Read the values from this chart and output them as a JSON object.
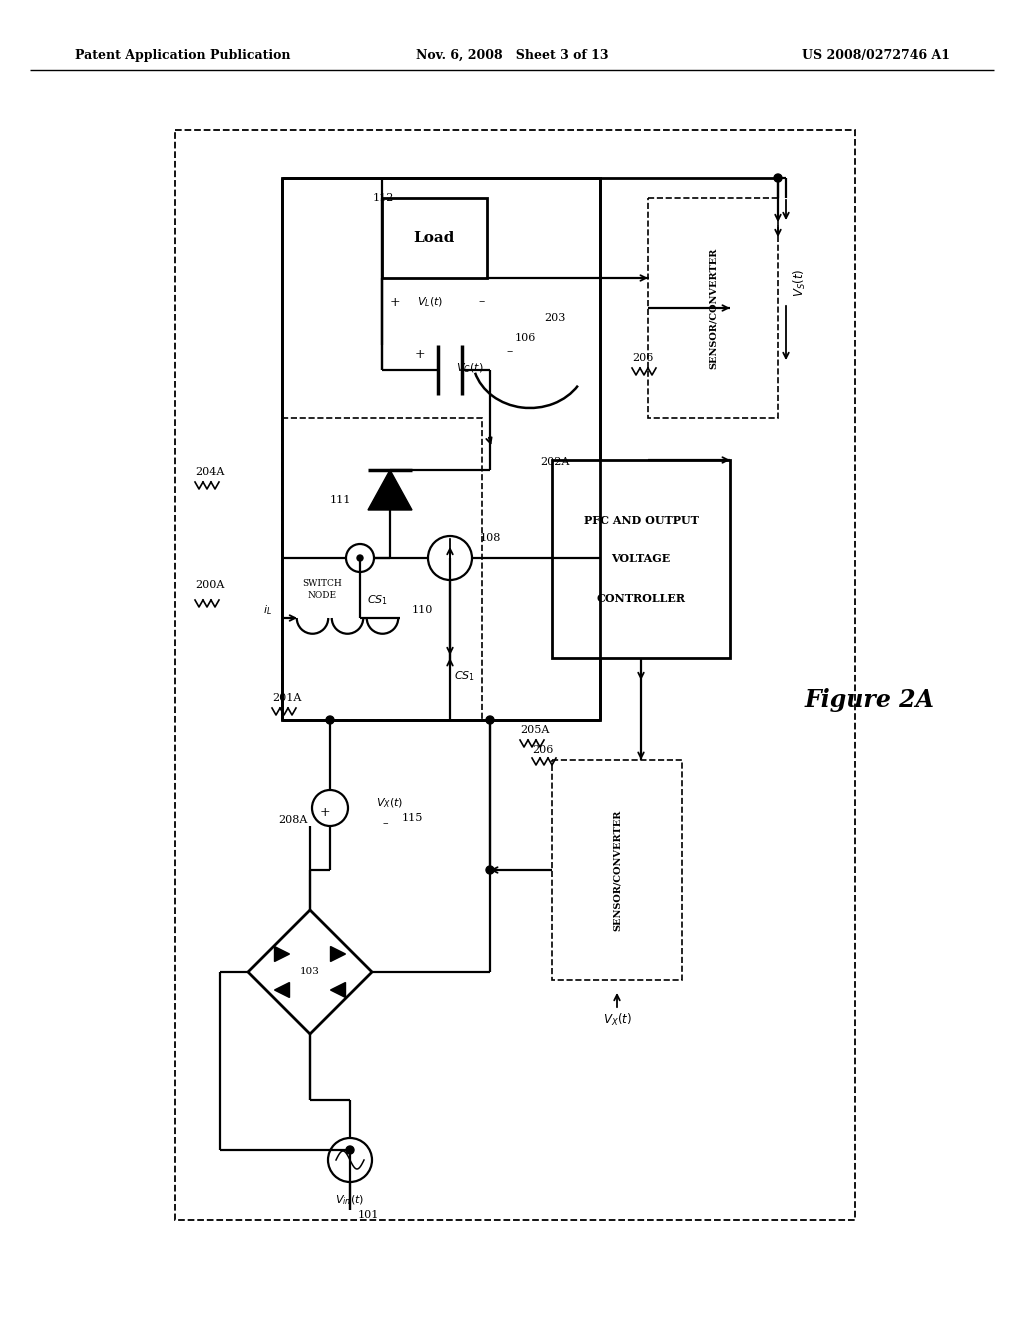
{
  "header_left": "Patent Application Publication",
  "header_mid": "Nov. 6, 2008   Sheet 3 of 13",
  "header_right": "US 2008/0272746 A1",
  "figure_caption": "Figure 2A",
  "bg": "#ffffff",
  "lw": 1.6,
  "lw_thick": 2.0
}
